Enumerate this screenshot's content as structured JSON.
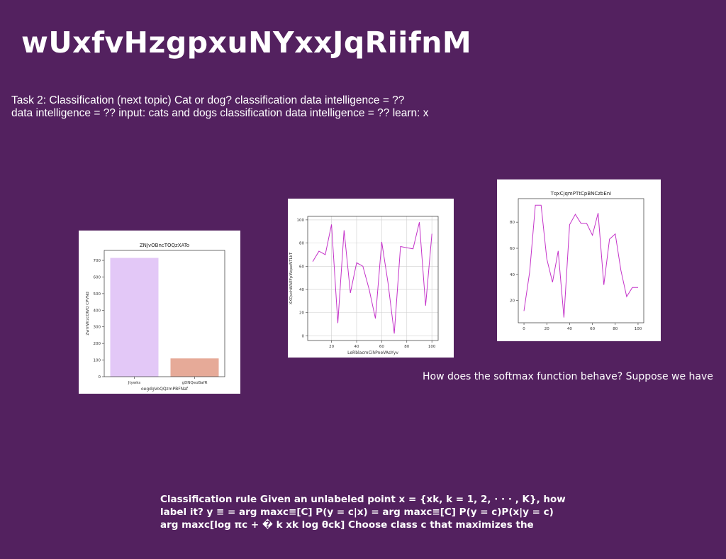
{
  "slide": {
    "title": "wUxfvHzgpxuNYxxJqRiifnM",
    "task_lines": [
      "Task 2: Classification (next topic) Cat or dog? classification data intelligence = ??",
      "data intelligence = ?? input: cats and dogs classification data intelligence = ?? learn: x"
    ],
    "softmax_text": "How does the softmax function behave? Suppose we have",
    "rule_lines": [
      "Classification rule Given an unlabeled point x = {xk, k = 1, 2, · · · , K}, how",
      "label it? y ≡ = arg maxc≡[C] P(y = c|x) = arg maxc≡[C] P(y = c)P(x|y = c)",
      "arg maxc[log πc + � k xk log θck] Choose class c that maximizes the"
    ]
  },
  "chart_data": [
    {
      "type": "bar",
      "title": "ZNJvOBncTOQzXATo",
      "xlabel": "oegdgVoQQzmPBFNaf",
      "ylabel": "ZwmWrzcQWQ CPVNd",
      "categories": [
        "Jtywks",
        "gDNQeoBafR"
      ],
      "values": [
        715,
        110
      ],
      "colors": [
        "#e3c8f7",
        "#e6aa98"
      ],
      "ylim": [
        0,
        760
      ],
      "yticks": [
        0,
        100,
        200,
        300,
        400,
        500,
        600,
        700
      ],
      "grid": false
    },
    {
      "type": "line",
      "title": "",
      "xlabel": "LeRblacmCihPneVAsYyv",
      "ylabel": "XXQvchWAEFpWqaeNTLkT",
      "x": [
        5,
        10,
        15,
        20,
        25,
        30,
        35,
        40,
        45,
        50,
        55,
        60,
        65,
        70,
        75,
        80,
        85,
        90,
        95,
        100
      ],
      "y": [
        64,
        73,
        70,
        96,
        11,
        91,
        37,
        63,
        60,
        40,
        15,
        81,
        46,
        2,
        77,
        76,
        75,
        98,
        26,
        88
      ],
      "color": "#c433c9",
      "xlim": [
        1,
        105
      ],
      "ylim": [
        -4,
        103
      ],
      "xticks": [
        20,
        40,
        60,
        80,
        100
      ],
      "yticks": [
        0,
        20,
        40,
        60,
        80,
        100
      ],
      "grid": true
    },
    {
      "type": "line",
      "title": "TqxCjqmPTtCpBNCzbEni",
      "xlabel": "",
      "ylabel": "",
      "x": [
        0,
        5,
        10,
        15,
        20,
        25,
        30,
        35,
        40,
        45,
        50,
        55,
        60,
        65,
        70,
        75,
        80,
        85,
        90,
        95,
        100
      ],
      "y": [
        12,
        42,
        93,
        93,
        52,
        34,
        58,
        7,
        78,
        86,
        79,
        79,
        70,
        87,
        32,
        67,
        71,
        43,
        23,
        30,
        30
      ],
      "color": "#c433c9",
      "xlim": [
        -5,
        105
      ],
      "ylim": [
        3,
        98
      ],
      "xticks": [
        0,
        20,
        40,
        60,
        80,
        100
      ],
      "yticks": [
        20,
        40,
        60,
        80
      ],
      "grid": false
    }
  ]
}
